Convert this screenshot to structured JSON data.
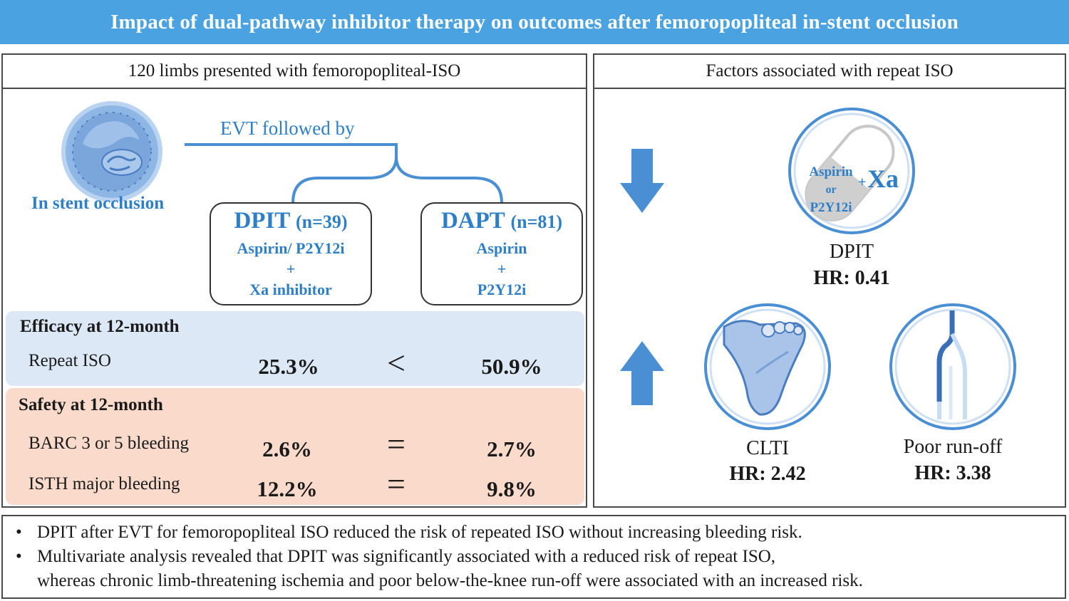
{
  "title": "Impact of dual-pathway inhibitor therapy on outcomes after femoropopliteal in-stent occlusion",
  "left_panel": {
    "header": "120 limbs presented with femoropopliteal-ISO",
    "occlusion_label": "In stent occlusion",
    "evt_label": "EVT followed by",
    "arms": [
      {
        "name": "DPIT",
        "n": "(n=39)",
        "line1": "Aspirin/ P2Y12i",
        "line2": "+",
        "line3": "Xa inhibitor"
      },
      {
        "name": "DAPT",
        "n": "(n=81)",
        "line1": "Aspirin",
        "line2": "+",
        "line3": "P2Y12i"
      }
    ],
    "efficacy": {
      "title": "Efficacy at 12-month",
      "rows": [
        {
          "label": "Repeat ISO",
          "dpit": "25.3%",
          "op": "<",
          "dapt": "50.9%"
        }
      ]
    },
    "safety": {
      "title": "Safety at 12-month",
      "rows": [
        {
          "label": "BARC 3 or 5 bleeding",
          "dpit": "2.6%",
          "op": "=",
          "dapt": "2.7%"
        },
        {
          "label": "ISTH major bleeding",
          "dpit": "12.2%",
          "op": "=",
          "dapt": "9.8%"
        }
      ]
    }
  },
  "right_panel": {
    "header": "Factors associated with repeat ISO",
    "pill_labels": {
      "line1": "Aspirin",
      "line2": "or",
      "line3": "P2Y12i",
      "plus": "+",
      "xa": "Xa"
    },
    "factors": [
      {
        "name": "DPIT",
        "hr": "HR: 0.41",
        "direction": "down",
        "icon": "pill-icon"
      },
      {
        "name": "CLTI",
        "hr": "HR: 2.42",
        "direction": "up",
        "icon": "foot-icon"
      },
      {
        "name": "Poor run-off",
        "hr": "HR: 3.38",
        "direction": "up",
        "icon": "artery-icon"
      }
    ]
  },
  "conclusions": [
    {
      "bullet": "•",
      "lines": [
        "DPIT after EVT for femoropopliteal ISO reduced the risk of repeated ISO without increasing bleeding risk."
      ]
    },
    {
      "bullet": "•",
      "lines": [
        "Multivariate analysis revealed that DPIT was significantly associated with a reduced risk of repeat ISO,",
        "whereas chronic limb-threatening ischemia and poor below-the-knee run-off were associated with an increased risk."
      ]
    }
  ],
  "colors": {
    "banner": "#4aa3e0",
    "accent": "#2e7fc6",
    "efficacy_band": "#dce8f5",
    "safety_band": "#f9dacb",
    "arrow": "#4a8fd4"
  }
}
